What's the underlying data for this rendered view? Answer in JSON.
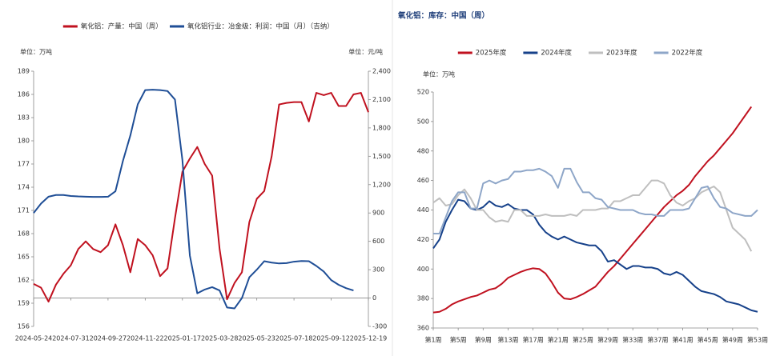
{
  "chart_data": [
    {
      "type": "line",
      "legend": "top",
      "y_label": "单位：万吨",
      "y2_label": "单位：元/吨",
      "categories": [
        "2024-05-24",
        null,
        null,
        null,
        null,
        "2024-07-31",
        null,
        null,
        null,
        null,
        "2024-09-27",
        null,
        null,
        null,
        null,
        "2024-11-22",
        null,
        null,
        null,
        null,
        "2025-01-17",
        null,
        null,
        null,
        null,
        "2025-03-28",
        null,
        null,
        null,
        null,
        "2025-05-23",
        null,
        null,
        null,
        null,
        "2025-07-18",
        null,
        null,
        null,
        null,
        "2025-09-12",
        null,
        null,
        null,
        null,
        "2025-12-19"
      ],
      "ylim": [
        156,
        189
      ],
      "yticks": [
        156,
        159,
        162,
        165,
        168,
        171,
        174,
        177,
        180,
        183,
        186,
        189
      ],
      "y2lim": [
        -300,
        2400
      ],
      "y2ticks": [
        -300,
        0,
        300,
        600,
        900,
        {
          "value": 1200,
          "label": "1,200"
        },
        {
          "value": 1500,
          "label": "1,500"
        },
        {
          "value": 1800,
          "label": "1,800"
        },
        {
          "value": 2100,
          "label": "2,100"
        },
        {
          "value": 2400,
          "label": "2,400"
        }
      ],
      "series": [
        {
          "name": "氧化铝：产量：中国（周）",
          "color": "#c0111f",
          "values": [
            161.5,
            161,
            159.2,
            161.4,
            162.8,
            163.9,
            166,
            167,
            166,
            165.6,
            166.5,
            169.2,
            166.5,
            163,
            167.3,
            166.5,
            165.2,
            162.5,
            163.5,
            170,
            176,
            177.7,
            179.2,
            177,
            175.5,
            166,
            159.5,
            161.6,
            163,
            169.5,
            172.5,
            173.5,
            178,
            184.7,
            184.9,
            185,
            185,
            182.5,
            186.2,
            185.9,
            186.2,
            184.5,
            184.5,
            186,
            186.2,
            183.7
          ]
        },
        {
          "name": "氧化铝行业：冶金级：利润：中国（月）（吉纳）",
          "color": "#1f4e96",
          "axis": "y2",
          "values": [
            900,
            1000,
            1072,
            1090,
            1090,
            1080,
            1075,
            1072,
            1070,
            1070,
            1072,
            1130,
            1450,
            1720,
            2050,
            2200,
            2204,
            2200,
            2190,
            2100,
            1460,
            450,
            50,
            90,
            115,
            80,
            -100,
            -110,
            0,
            220,
            300,
            390,
            375,
            366,
            370,
            385,
            392,
            390,
            340,
            280,
            190,
            140,
            105,
            80,
            null,
            null
          ]
        }
      ]
    },
    {
      "type": "line",
      "title": "氧化铝：库存：中国（周）",
      "legend": "top",
      "y_label": "单位：万吨",
      "categories": [
        "第1周",
        null,
        null,
        null,
        "第5周",
        null,
        null,
        null,
        "第9周",
        null,
        null,
        null,
        "第13周",
        null,
        null,
        null,
        "第17周",
        null,
        null,
        null,
        "第21周",
        null,
        null,
        null,
        "第25周",
        null,
        null,
        null,
        "第29周",
        null,
        null,
        null,
        "第33周",
        null,
        null,
        null,
        "第37周",
        null,
        null,
        null,
        "第41周",
        null,
        null,
        null,
        "第45周",
        null,
        null,
        null,
        "第49周",
        null,
        null,
        null,
        "第53周"
      ],
      "ylim": [
        360,
        520
      ],
      "yticks": [
        360,
        380,
        400,
        420,
        440,
        460,
        480,
        500,
        520
      ],
      "series": [
        {
          "name": "2025年度",
          "color": "#c0111f",
          "values": [
            370.5,
            371,
            373,
            376,
            378,
            379.5,
            381,
            382,
            384,
            386,
            387,
            390,
            394,
            396,
            398,
            399.5,
            400.5,
            400,
            397,
            391,
            384,
            380,
            379.5,
            381,
            383,
            385.5,
            388,
            393,
            398,
            402,
            407,
            412,
            417,
            422,
            427,
            432,
            437,
            442,
            446,
            450,
            453,
            457,
            463,
            468,
            473,
            477,
            482,
            487,
            492,
            498,
            504,
            510,
            null
          ]
        },
        {
          "name": "2024年度",
          "color": "#16418a",
          "values": [
            414,
            420,
            432,
            440,
            447,
            446,
            441,
            440,
            442,
            446,
            443,
            442,
            444,
            441,
            440,
            440,
            437,
            430,
            425,
            422,
            420,
            422,
            420,
            418,
            417,
            416,
            416,
            412,
            405,
            406,
            403,
            400,
            402,
            402,
            401,
            401,
            400,
            397,
            396,
            398,
            396,
            392,
            388,
            385,
            384,
            383,
            381,
            378,
            377,
            376,
            374,
            372,
            371
          ]
        },
        {
          "name": "2023年度",
          "color": "#bfbfbf",
          "values": [
            445,
            448,
            443,
            444,
            450,
            454,
            448,
            440,
            440,
            435,
            432,
            433,
            432,
            440,
            440,
            436,
            436,
            436,
            437,
            436,
            436,
            436,
            437,
            436,
            440,
            440,
            440,
            441,
            441,
            446,
            446,
            448,
            450,
            450,
            455,
            460,
            460,
            458,
            450,
            445,
            443,
            446,
            448,
            452,
            454,
            456,
            452,
            440,
            428,
            424,
            420,
            412,
            null
          ]
        },
        {
          "name": "2022年度",
          "color": "#8ea6c8",
          "values": [
            424,
            424,
            435,
            446,
            452,
            452,
            441,
            441,
            458,
            460,
            458,
            460,
            461,
            466,
            466,
            467,
            467,
            468,
            466,
            463,
            455,
            468,
            468,
            459,
            452,
            452,
            448,
            447,
            442,
            441,
            440,
            440,
            440,
            438,
            437,
            437,
            436,
            436,
            440,
            440,
            440,
            441,
            448,
            455,
            456,
            448,
            442,
            441,
            438,
            437,
            436,
            436,
            440
          ]
        }
      ]
    }
  ]
}
